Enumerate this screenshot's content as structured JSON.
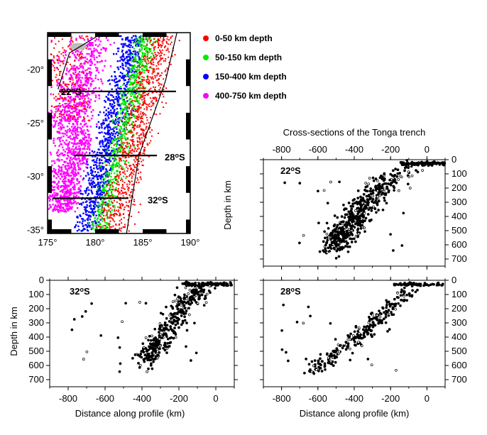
{
  "chart_data": {
    "type": "scatter",
    "title": "Cross-sections of the Tonga trench",
    "map": {
      "lon_ticks": [
        175,
        180,
        185,
        190
      ],
      "lon_labels": [
        "175°",
        "180°",
        "185°",
        "190°"
      ],
      "lat_ticks": [
        -20,
        -25,
        -30,
        -35
      ],
      "lat_labels": [
        "-20°",
        "-25°",
        "-30°",
        "-35°"
      ],
      "lon_range": [
        175,
        190
      ],
      "lat_range": [
        -35.3,
        -16.5
      ],
      "profiles": [
        {
          "name": "22°S",
          "lat": -22,
          "lon_start": 176.2,
          "lon_end": 188.5,
          "label": "22",
          "sup": "o",
          "unit": "S"
        },
        {
          "name": "28°S",
          "lat": -28,
          "lon_start": 177.8,
          "lon_end": 186.5,
          "label": "28",
          "sup": "o",
          "unit": "S"
        },
        {
          "name": "32°S",
          "lat": -32,
          "lon_start": 175.5,
          "lon_end": 183.5,
          "label": "32",
          "sup": "o",
          "unit": "S"
        }
      ],
      "trench_line": [
        [
          188.6,
          -16.5
        ],
        [
          187.4,
          -21
        ],
        [
          184.6,
          -28
        ],
        [
          183.3,
          -35.3
        ]
      ],
      "arc_line": [
        [
          180.3,
          -16.8
        ],
        [
          177.3,
          -18.4
        ],
        [
          176.1,
          -21.8
        ]
      ],
      "depth_classes": [
        {
          "label": "0-50 km depth",
          "color": "#ff0000"
        },
        {
          "label": "50-150 km depth",
          "color": "#00ee00"
        },
        {
          "label": "150-400 km depth",
          "color": "#0000ff"
        },
        {
          "label": "400-750 km depth",
          "color": "#ff00ff"
        }
      ]
    },
    "sections": [
      {
        "id": "22S",
        "label": "22",
        "sup": "o",
        "unit": "S",
        "xlim": [
          -900,
          100
        ],
        "ylim": [
          0,
          750
        ],
        "x_ticks": [
          -800,
          -600,
          -400,
          -200,
          0
        ],
        "x_tick_labels": [
          "-800",
          "-600",
          "-400",
          "-200",
          "0"
        ],
        "y_ticks": [
          0,
          100,
          200,
          300,
          400,
          500,
          600,
          700
        ],
        "y_tick_labels": [
          "0",
          "100",
          "200",
          "300",
          "400",
          "500",
          "600",
          "700"
        ],
        "ylabel": "Depth in km"
      },
      {
        "id": "32S",
        "label": "32",
        "sup": "o",
        "unit": "S",
        "xlim": [
          -900,
          100
        ],
        "ylim": [
          0,
          750
        ],
        "x_ticks": [
          -800,
          -600,
          -400,
          -200,
          0
        ],
        "x_tick_labels": [
          "-800",
          "-600",
          "-400",
          "-200",
          "0"
        ],
        "y_ticks": [
          0,
          100,
          200,
          300,
          400,
          500,
          600,
          700
        ],
        "y_tick_labels": [
          "0",
          "100",
          "200",
          "300",
          "400",
          "500",
          "600",
          "700"
        ],
        "ylabel": "Depth in km",
        "xlabel": "Distance along profile (km)"
      },
      {
        "id": "28S",
        "label": "28",
        "sup": "o",
        "unit": "S",
        "xlim": [
          -900,
          100
        ],
        "ylim": [
          0,
          750
        ],
        "x_ticks": [
          -800,
          -600,
          -400,
          -200,
          0
        ],
        "x_tick_labels": [
          "-800",
          "-600",
          "-400",
          "-200",
          "0"
        ],
        "y_ticks": [
          0,
          100,
          200,
          300,
          400,
          500,
          600,
          700
        ],
        "y_tick_labels": [
          "0",
          "100",
          "200",
          "300",
          "400",
          "500",
          "600",
          "700"
        ],
        "xlabel": "Distance along profile (km)"
      }
    ]
  }
}
